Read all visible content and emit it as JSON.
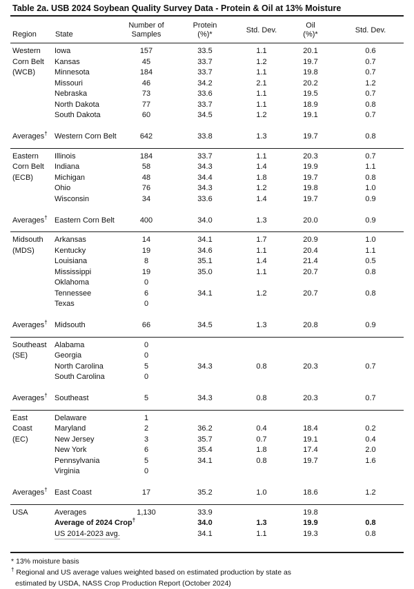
{
  "title": "Table 2a. USB 2024 Soybean Quality Survey Data - Protein & Oil at 13% Moisture",
  "columns": {
    "region": "Region",
    "state": "State",
    "samples": "Number of\nSamples",
    "protein": "Protein\n(%)*",
    "std_dev_1": "Std. Dev.",
    "oil": "Oil\n(%)*",
    "std_dev_2": "Std. Dev."
  },
  "dagger": "†",
  "sections": [
    {
      "code": "WCB",
      "rows": [
        {
          "region": "Western",
          "state": "Iowa",
          "samples": "157",
          "protein": "33.5",
          "protein_sd": "1.1",
          "oil": "20.1",
          "oil_sd": "0.6"
        },
        {
          "region": "Corn Belt",
          "state": "Kansas",
          "samples": "45",
          "protein": "33.7",
          "protein_sd": "1.2",
          "oil": "19.7",
          "oil_sd": "0.7"
        },
        {
          "region": "(WCB)",
          "state": "Minnesota",
          "samples": "184",
          "protein": "33.7",
          "protein_sd": "1.1",
          "oil": "19.8",
          "oil_sd": "0.7"
        },
        {
          "region": "",
          "state": "Missouri",
          "samples": "46",
          "protein": "34.2",
          "protein_sd": "2.1",
          "oil": "20.2",
          "oil_sd": "1.2"
        },
        {
          "region": "",
          "state": "Nebraska",
          "samples": "73",
          "protein": "33.6",
          "protein_sd": "1.1",
          "oil": "19.5",
          "oil_sd": "0.7"
        },
        {
          "region": "",
          "state": "North Dakota",
          "samples": "77",
          "protein": "33.7",
          "protein_sd": "1.1",
          "oil": "18.9",
          "oil_sd": "0.8"
        },
        {
          "region": "",
          "state": "South Dakota",
          "samples": "60",
          "protein": "34.5",
          "protein_sd": "1.2",
          "oil": "19.1",
          "oil_sd": "0.7"
        }
      ],
      "average": {
        "label": "Averages",
        "name": "Western Corn Belt",
        "samples": "642",
        "protein": "33.8",
        "protein_sd": "1.3",
        "oil": "19.7",
        "oil_sd": "0.8"
      }
    },
    {
      "code": "ECB",
      "rows": [
        {
          "region": "Eastern",
          "state": "Illinois",
          "samples": "184",
          "protein": "33.7",
          "protein_sd": "1.1",
          "oil": "20.3",
          "oil_sd": "0.7"
        },
        {
          "region": "Corn Belt",
          "state": "Indiana",
          "samples": "58",
          "protein": "34.3",
          "protein_sd": "1.4",
          "oil": "19.9",
          "oil_sd": "1.1"
        },
        {
          "region": "(ECB)",
          "state": "Michigan",
          "samples": "48",
          "protein": "34.4",
          "protein_sd": "1.8",
          "oil": "19.7",
          "oil_sd": "0.8"
        },
        {
          "region": "",
          "state": "Ohio",
          "samples": "76",
          "protein": "34.3",
          "protein_sd": "1.2",
          "oil": "19.8",
          "oil_sd": "1.0"
        },
        {
          "region": "",
          "state": "Wisconsin",
          "samples": "34",
          "protein": "33.6",
          "protein_sd": "1.4",
          "oil": "19.7",
          "oil_sd": "0.9"
        }
      ],
      "average": {
        "label": "Averages",
        "name": "Eastern Corn Belt",
        "samples": "400",
        "protein": "34.0",
        "protein_sd": "1.3",
        "oil": "20.0",
        "oil_sd": "0.9"
      }
    },
    {
      "code": "MDS",
      "rows": [
        {
          "region": "Midsouth",
          "state": "Arkansas",
          "samples": "14",
          "protein": "34.1",
          "protein_sd": "1.7",
          "oil": "20.9",
          "oil_sd": "1.0"
        },
        {
          "region": "(MDS)",
          "state": "Kentucky",
          "samples": "19",
          "protein": "34.6",
          "protein_sd": "1.1",
          "oil": "20.4",
          "oil_sd": "1.1"
        },
        {
          "region": "",
          "state": "Louisiana",
          "samples": "8",
          "protein": "35.1",
          "protein_sd": "1.4",
          "oil": "21.4",
          "oil_sd": "0.5"
        },
        {
          "region": "",
          "state": "Mississippi",
          "samples": "19",
          "protein": "35.0",
          "protein_sd": "1.1",
          "oil": "20.7",
          "oil_sd": "0.8"
        },
        {
          "region": "",
          "state": "Oklahoma",
          "samples": "0",
          "protein": "",
          "protein_sd": "",
          "oil": "",
          "oil_sd": ""
        },
        {
          "region": "",
          "state": "Tennessee",
          "samples": "6",
          "protein": "34.1",
          "protein_sd": "1.2",
          "oil": "20.7",
          "oil_sd": "0.8"
        },
        {
          "region": "",
          "state": "Texas",
          "samples": "0",
          "protein": "",
          "protein_sd": "",
          "oil": "",
          "oil_sd": ""
        }
      ],
      "average": {
        "label": "Averages",
        "name": "Midsouth",
        "samples": "66",
        "protein": "34.5",
        "protein_sd": "1.3",
        "oil": "20.8",
        "oil_sd": "0.9"
      }
    },
    {
      "code": "SE",
      "rows": [
        {
          "region": "Southeast",
          "state": "Alabama",
          "samples": "0",
          "protein": "",
          "protein_sd": "",
          "oil": "",
          "oil_sd": ""
        },
        {
          "region": "(SE)",
          "state": "Georgia",
          "samples": "0",
          "protein": "",
          "protein_sd": "",
          "oil": "",
          "oil_sd": ""
        },
        {
          "region": "",
          "state": "North Carolina",
          "samples": "5",
          "protein": "34.3",
          "protein_sd": "0.8",
          "oil": "20.3",
          "oil_sd": "0.7"
        },
        {
          "region": "",
          "state": "South Carolina",
          "samples": "0",
          "protein": "",
          "protein_sd": "",
          "oil": "",
          "oil_sd": ""
        }
      ],
      "average": {
        "label": "Averages",
        "name": "Southeast",
        "samples": "5",
        "protein": "34.3",
        "protein_sd": "0.8",
        "oil": "20.3",
        "oil_sd": "0.7"
      }
    },
    {
      "code": "EC",
      "rows": [
        {
          "region": "East",
          "state": "Delaware",
          "samples": "1",
          "protein": "",
          "protein_sd": "",
          "oil": "",
          "oil_sd": ""
        },
        {
          "region": "Coast",
          "state": "Maryland",
          "samples": "2",
          "protein": "36.2",
          "protein_sd": "0.4",
          "oil": "18.4",
          "oil_sd": "0.2"
        },
        {
          "region": "(EC)",
          "state": "New Jersey",
          "samples": "3",
          "protein": "35.7",
          "protein_sd": "0.7",
          "oil": "19.1",
          "oil_sd": "0.4"
        },
        {
          "region": "",
          "state": "New York",
          "samples": "6",
          "protein": "35.4",
          "protein_sd": "1.8",
          "oil": "17.4",
          "oil_sd": "2.0"
        },
        {
          "region": "",
          "state": "Pennsylvania",
          "samples": "5",
          "protein": "34.1",
          "protein_sd": "0.8",
          "oil": "19.7",
          "oil_sd": "1.6"
        },
        {
          "region": "",
          "state": "Virginia",
          "samples": "0",
          "protein": "",
          "protein_sd": "",
          "oil": "",
          "oil_sd": ""
        }
      ],
      "average": {
        "label": "Averages",
        "name": "East Coast",
        "samples": "17",
        "protein": "35.2",
        "protein_sd": "1.0",
        "oil": "18.6",
        "oil_sd": "1.2"
      }
    }
  ],
  "usa": {
    "region": "USA",
    "rows": [
      {
        "label": "Averages",
        "dagger": false,
        "bold": false,
        "underline": false,
        "samples": "1,130",
        "protein": "33.9",
        "protein_sd": "",
        "oil": "19.8",
        "oil_sd": ""
      },
      {
        "label": "Average of 2024 Crop",
        "dagger": true,
        "bold": true,
        "underline": false,
        "samples": "",
        "protein": "34.0",
        "protein_sd": "1.3",
        "oil": "19.9",
        "oil_sd": "0.8"
      },
      {
        "label": "US 2014-2023 avg.",
        "dagger": false,
        "bold": false,
        "underline": true,
        "samples": "",
        "protein": "34.1",
        "protein_sd": "1.1",
        "oil": "19.3",
        "oil_sd": "0.8"
      }
    ]
  },
  "footnotes": [
    {
      "marker": "*",
      "sup": false,
      "indent": false,
      "text": "13% moisture basis"
    },
    {
      "marker": "†",
      "sup": true,
      "indent": false,
      "text": "Regional and US average values weighted based on estimated production by state as"
    },
    {
      "marker": "",
      "sup": false,
      "indent": true,
      "text": "estimated by USDA, NASS Crop Production Report (October 2024)"
    }
  ]
}
